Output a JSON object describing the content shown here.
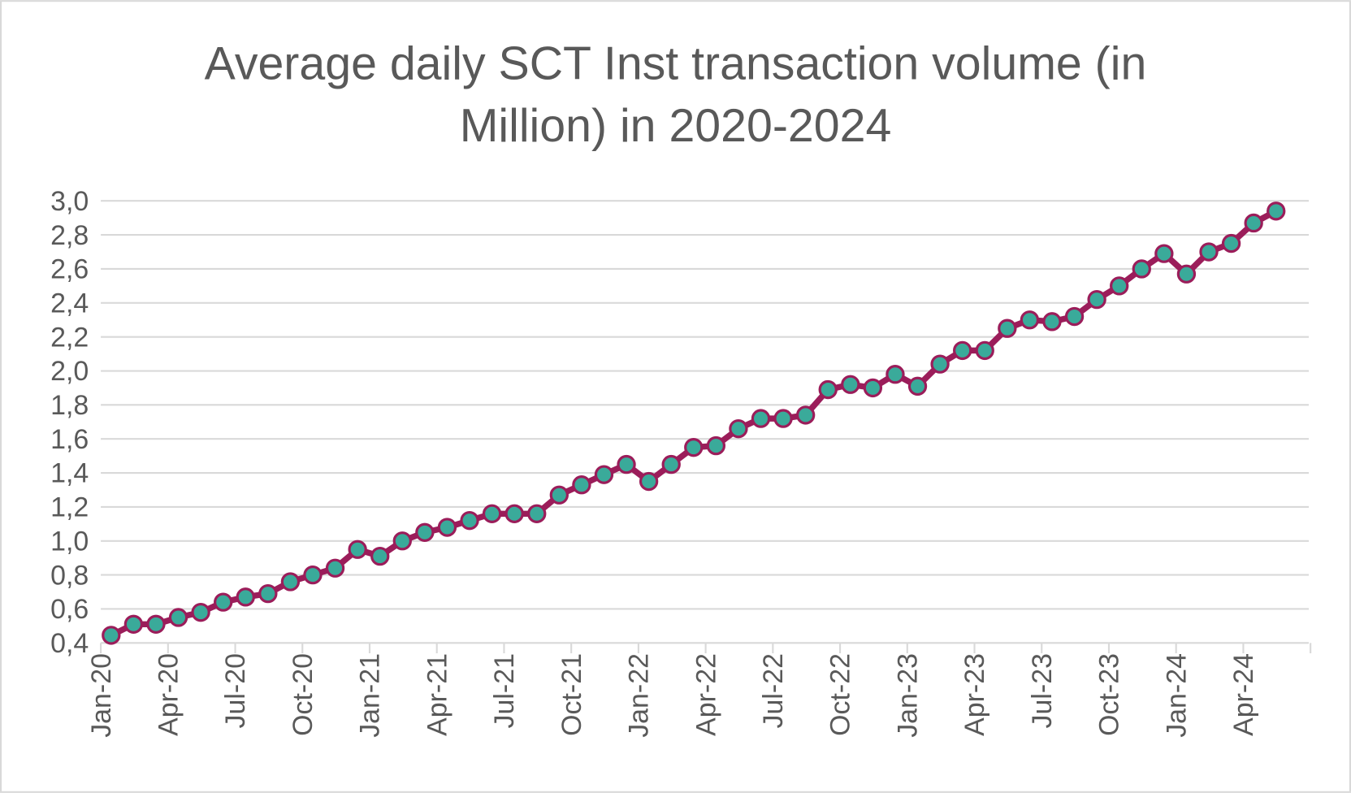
{
  "chart_data": {
    "type": "line",
    "title": "Average daily SCT Inst transaction volume (in Million) in 2020-2024",
    "title_lines": [
      "Average daily SCT Inst transaction volume (in",
      "Million) in 2020-2024"
    ],
    "xlabel": "",
    "ylabel": "",
    "ylim": [
      0.4,
      3.0
    ],
    "y_ticks": [
      "0,4",
      "0,6",
      "0,8",
      "1,0",
      "1,2",
      "1,4",
      "1,6",
      "1,8",
      "2,0",
      "2,2",
      "2,4",
      "2,6",
      "2,8",
      "3,0"
    ],
    "x_tick_labels": [
      "Jan-20",
      "Apr-20",
      "Jul-20",
      "Oct-20",
      "Jan-21",
      "Apr-21",
      "Jul-21",
      "Oct-21",
      "Jan-22",
      "Apr-22",
      "Jul-22",
      "Oct-22",
      "Jan-23",
      "Apr-23",
      "Jul-23",
      "Oct-23",
      "Jan-24",
      "Apr-24"
    ],
    "x_range": [
      "2020-01",
      "2024-06"
    ],
    "grid": "horizontal",
    "legend": "none",
    "colors": {
      "line": "#9b1d5a",
      "marker_fill": "#3aaa9a",
      "grid": "#d9d9d9",
      "text": "#595959"
    },
    "x": [
      "2020-01",
      "2020-02",
      "2020-03",
      "2020-04",
      "2020-05",
      "2020-06",
      "2020-07",
      "2020-08",
      "2020-09",
      "2020-10",
      "2020-11",
      "2020-12",
      "2021-01",
      "2021-02",
      "2021-03",
      "2021-04",
      "2021-05",
      "2021-06",
      "2021-07",
      "2021-08",
      "2021-09",
      "2021-10",
      "2021-11",
      "2021-12",
      "2022-01",
      "2022-02",
      "2022-03",
      "2022-04",
      "2022-05",
      "2022-06",
      "2022-07",
      "2022-08",
      "2022-09",
      "2022-10",
      "2022-11",
      "2022-12",
      "2023-01",
      "2023-02",
      "2023-03",
      "2023-04",
      "2023-05",
      "2023-06",
      "2023-07",
      "2023-08",
      "2023-09",
      "2023-10",
      "2023-11",
      "2023-12",
      "2024-01",
      "2024-02",
      "2024-03",
      "2024-04",
      "2024-05"
    ],
    "values": [
      0.445,
      0.51,
      0.51,
      0.55,
      0.58,
      0.64,
      0.67,
      0.69,
      0.76,
      0.8,
      0.84,
      0.95,
      0.91,
      1.0,
      1.05,
      1.08,
      1.12,
      1.16,
      1.16,
      1.16,
      1.27,
      1.33,
      1.39,
      1.45,
      1.35,
      1.45,
      1.55,
      1.56,
      1.66,
      1.72,
      1.72,
      1.74,
      1.89,
      1.92,
      1.9,
      1.98,
      1.91,
      2.04,
      2.12,
      2.12,
      2.25,
      2.3,
      2.29,
      2.32,
      2.42,
      2.5,
      2.6,
      2.69,
      2.57,
      2.7,
      2.75,
      2.87,
      2.94
    ]
  }
}
